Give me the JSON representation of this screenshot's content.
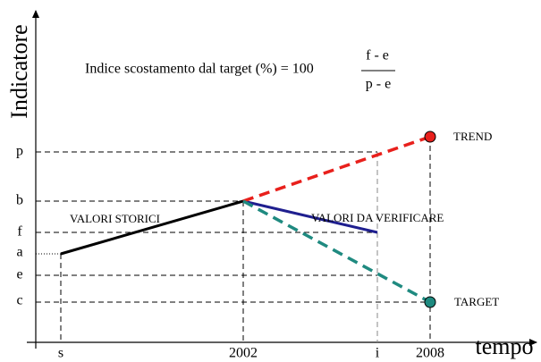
{
  "axis": {
    "y_title": "Indicatore",
    "x_title": "tempo"
  },
  "y_labels": [
    "p",
    "b",
    "f",
    "a",
    "e",
    "c"
  ],
  "x_labels": [
    "s",
    "2002",
    "i",
    "2008"
  ],
  "formula": {
    "lhs": "Indice scostamento dal target (%) = 100",
    "numerator": "f - e",
    "denominator": "p - e"
  },
  "annotations": {
    "historical": "VALORI STORICI",
    "to_verify": "VALORI DA VERIFICARE",
    "trend": "TREND",
    "target": "TARGET"
  }
}
